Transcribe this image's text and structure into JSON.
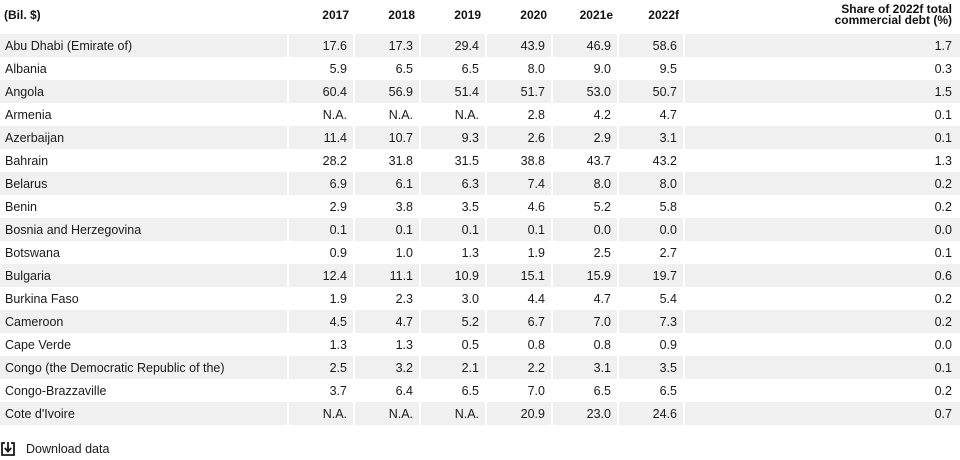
{
  "table": {
    "headers": [
      "(Bil. $)",
      "2017",
      "2018",
      "2019",
      "2020",
      "2021e",
      "2022f"
    ],
    "share_header_line1": "Share of 2022f total",
    "share_header_line2": "commercial debt (%)",
    "rows": [
      [
        "Abu Dhabi (Emirate of)",
        "17.6",
        "17.3",
        "29.4",
        "43.9",
        "46.9",
        "58.6",
        "1.7"
      ],
      [
        "Albania",
        "5.9",
        "6.5",
        "6.5",
        "8.0",
        "9.0",
        "9.5",
        "0.3"
      ],
      [
        "Angola",
        "60.4",
        "56.9",
        "51.4",
        "51.7",
        "53.0",
        "50.7",
        "1.5"
      ],
      [
        "Armenia",
        "N.A.",
        "N.A.",
        "N.A.",
        "2.8",
        "4.2",
        "4.7",
        "0.1"
      ],
      [
        "Azerbaijan",
        "11.4",
        "10.7",
        "9.3",
        "2.6",
        "2.9",
        "3.1",
        "0.1"
      ],
      [
        "Bahrain",
        "28.2",
        "31.8",
        "31.5",
        "38.8",
        "43.7",
        "43.2",
        "1.3"
      ],
      [
        "Belarus",
        "6.9",
        "6.1",
        "6.3",
        "7.4",
        "8.0",
        "8.0",
        "0.2"
      ],
      [
        "Benin",
        "2.9",
        "3.8",
        "3.5",
        "4.6",
        "5.2",
        "5.8",
        "0.2"
      ],
      [
        "Bosnia and Herzegovina",
        "0.1",
        "0.1",
        "0.1",
        "0.1",
        "0.0",
        "0.0",
        "0.0"
      ],
      [
        "Botswana",
        "0.9",
        "1.0",
        "1.3",
        "1.9",
        "2.5",
        "2.7",
        "0.1"
      ],
      [
        "Bulgaria",
        "12.4",
        "11.1",
        "10.9",
        "15.1",
        "15.9",
        "19.7",
        "0.6"
      ],
      [
        "Burkina Faso",
        "1.9",
        "2.3",
        "3.0",
        "4.4",
        "4.7",
        "5.4",
        "0.2"
      ],
      [
        "Cameroon",
        "4.5",
        "4.7",
        "5.2",
        "6.7",
        "7.0",
        "7.3",
        "0.2"
      ],
      [
        "Cape Verde",
        "1.3",
        "1.3",
        "0.5",
        "0.8",
        "0.8",
        "0.9",
        "0.0"
      ],
      [
        "Congo (the Democratic Republic of the)",
        "2.5",
        "3.2",
        "2.1",
        "2.2",
        "3.1",
        "3.5",
        "0.1"
      ],
      [
        "Congo-Brazzaville",
        "3.7",
        "6.4",
        "6.5",
        "7.0",
        "6.5",
        "6.5",
        "0.2"
      ],
      [
        "Cote d'Ivoire",
        "N.A.",
        "N.A.",
        "N.A.",
        "20.9",
        "23.0",
        "24.6",
        "0.7"
      ]
    ]
  },
  "download": {
    "label": "Download data",
    "icon": "download-icon"
  }
}
